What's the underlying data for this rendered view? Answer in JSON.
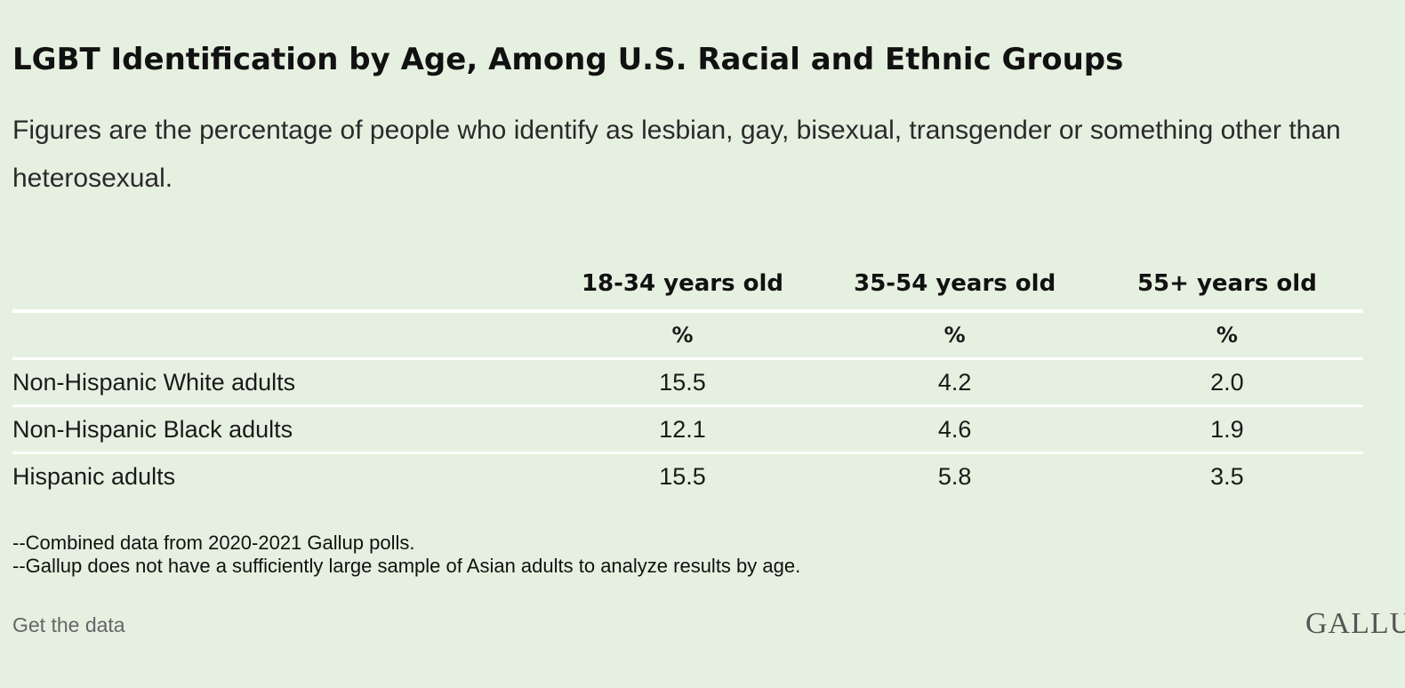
{
  "title": "LGBT Identification by Age, Among U.S. Racial and Ethnic Groups",
  "subtitle": "Figures are the percentage of people who identify as lesbian, gay, bisexual, transgender or something other than heterosexual.",
  "chart_data": {
    "type": "table",
    "columns": [
      "18-34 years old",
      "35-54 years old",
      "55+ years old"
    ],
    "unit_row": [
      "%",
      "%",
      "%"
    ],
    "rows": [
      {
        "label": "Non-Hispanic White adults",
        "values": [
          "15.5",
          "4.2",
          "2.0"
        ]
      },
      {
        "label": "Non-Hispanic Black adults",
        "values": [
          "12.1",
          "4.6",
          "1.9"
        ]
      },
      {
        "label": "Hispanic adults",
        "values": [
          "15.5",
          "5.8",
          "3.5"
        ]
      }
    ]
  },
  "notes": [
    "--Combined data from 2020-2021 Gallup polls.",
    "--Gallup does not have a sufficiently large sample of Asian adults to analyze results by age."
  ],
  "footer": {
    "get_data_label": "Get the data",
    "logo_text": "GALLU"
  },
  "colors": {
    "background": "#e6f0e0",
    "rule": "#ffffff",
    "text": "#111111",
    "muted": "#666666"
  }
}
